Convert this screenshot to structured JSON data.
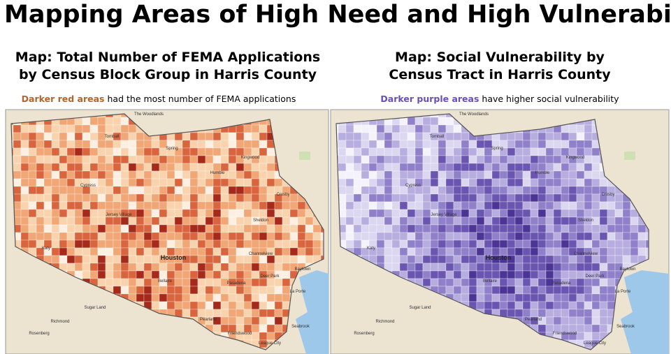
{
  "title": "Mapping Areas of High Need and High Vulnerability",
  "maps": [
    {
      "title_lines": [
        "Map: Total Number of FEMA Applications",
        "by Census Block Group in Harris County"
      ],
      "caption_highlight": "Darker red areas",
      "caption_rest": "had the most number of FEMA applications",
      "highlight_color": "#b0642e",
      "shade_colors": [
        "#fdf0e2",
        "#f8d3ae",
        "#f0a675",
        "#d9653e",
        "#a52a1c",
        "#7a1210"
      ]
    },
    {
      "title_lines": [
        "Map: Social Vulnerability by",
        "Census Tract in Harris County"
      ],
      "caption_highlight": "Darker purple areas",
      "caption_rest": "have higher social vulnerability",
      "highlight_color": "#6a4fb5",
      "shade_colors": [
        "#f4f2fb",
        "#dcd7f0",
        "#b7aedf",
        "#8f80c9",
        "#6a55b0",
        "#4b3494"
      ]
    }
  ],
  "place_labels": [
    "Houston",
    "Spring",
    "Kingwood",
    "Tomball",
    "Cypress",
    "Katy",
    "Bellaire",
    "Pasadena",
    "Baytown",
    "Sugar Land",
    "Pearland",
    "League City",
    "Humble",
    "Channelview",
    "Deer Park",
    "Jersey Village",
    "Crosby",
    "Sheldon",
    "Friendswood",
    "Seabrook",
    "La Porte",
    "The Woodlands",
    "Richmond",
    "Rosenberg"
  ]
}
